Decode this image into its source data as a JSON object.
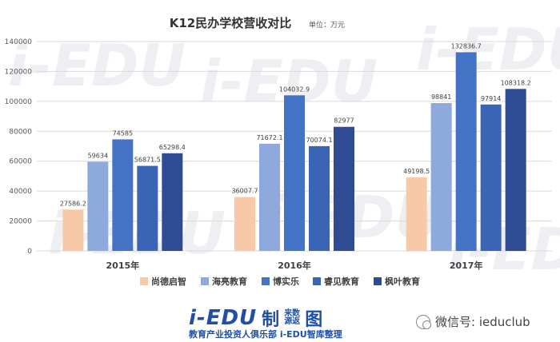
{
  "chart_data": {
    "type": "bar",
    "title": "K12民办学校营收对比",
    "unit_note": "单位：万元",
    "categories": [
      "2015年",
      "2016年",
      "2017年"
    ],
    "ylim": [
      0,
      140000
    ],
    "yticks": [
      0,
      20000,
      40000,
      60000,
      80000,
      100000,
      120000,
      140000
    ],
    "grid": true,
    "legend_position": "bottom",
    "series": [
      {
        "name": "尚德启智",
        "values": [
          27586.2,
          36007.7,
          49198.5
        ],
        "labels": [
          "27586.2",
          "36007.7",
          "49198.5"
        ],
        "color": "#f8c9a6"
      },
      {
        "name": "海亮教育",
        "values": [
          59634,
          71672.1,
          98841
        ],
        "labels": [
          "59634",
          "71672.1",
          "98841"
        ],
        "color": "#8ea9db"
      },
      {
        "name": "博实乐",
        "values": [
          74585,
          104032.9,
          132836.7
        ],
        "labels": [
          "74585",
          "104032.9",
          "132836.7"
        ],
        "color": "#4472c4"
      },
      {
        "name": "睿见教育",
        "values": [
          56871.5,
          70074.1,
          97914
        ],
        "labels": [
          "56871.5",
          "70074.1",
          "97914"
        ],
        "color": "#3a64b4"
      },
      {
        "name": "枫叶教育",
        "values": [
          65298.4,
          82977,
          108318.2
        ],
        "labels": [
          "65298.4",
          "82977",
          "108318.2"
        ],
        "color": "#2f4b94"
      }
    ]
  },
  "footer": {
    "brand_logo": "i-EDU",
    "brand_logo_b": "制",
    "brand_logo_c": "来数\n源返",
    "brand_logo_d": "图",
    "brand_sub": "教育产业投资人俱乐部    i-EDU智库整理",
    "wechat_label": "微信号: ieduclub"
  },
  "watermark": "i-EDU"
}
